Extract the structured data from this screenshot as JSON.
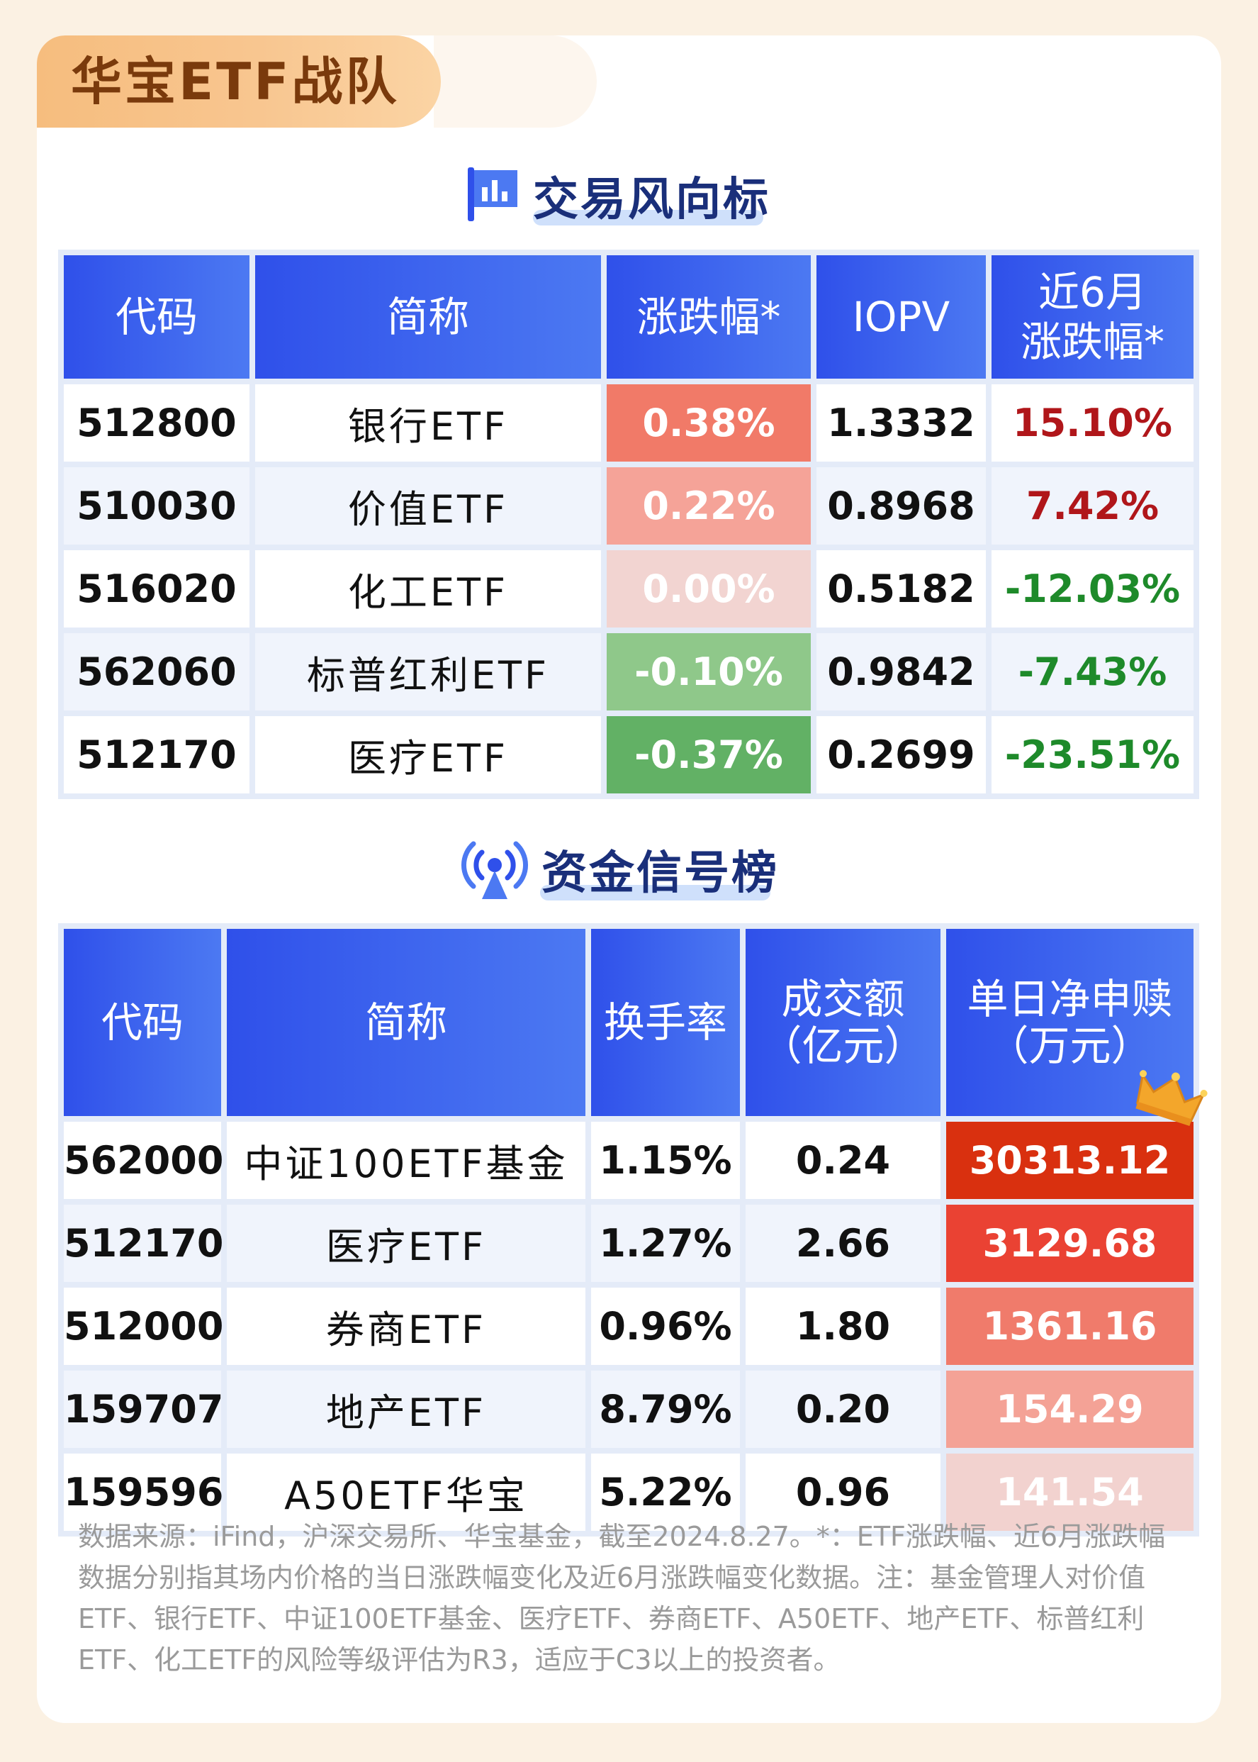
{
  "header": {
    "title": "华宝ETF战队"
  },
  "section1": {
    "title": "交易风向标",
    "icon": "flag-chart-icon",
    "columns": [
      "代码",
      "简称",
      "涨跌幅*",
      "IOPV",
      "近6月\n涨跌幅*"
    ],
    "rows": [
      {
        "code": "512800",
        "name": "银行ETF",
        "change": "0.38%",
        "iopv": "1.3332",
        "change6m": "15.10%",
        "change_color": "#f17a68",
        "change_text_color": "#ffffff"
      },
      {
        "code": "510030",
        "name": "价值ETF",
        "change": "0.22%",
        "iopv": "0.8968",
        "change6m": "7.42%",
        "change_color": "#f5a398",
        "change_text_color": "#ffffff"
      },
      {
        "code": "516020",
        "name": "化工ETF",
        "change": "0.00%",
        "iopv": "0.5182",
        "change6m": "-12.03%",
        "change_color": "#f2d4d1",
        "change_text_color": "#ffffff"
      },
      {
        "code": "562060",
        "name": "标普红利ETF",
        "change": "-0.10%",
        "iopv": "0.9842",
        "change6m": "-7.43%",
        "change_color": "#8fc88a",
        "change_text_color": "#ffffff"
      },
      {
        "code": "512170",
        "name": "医疗ETF",
        "change": "-0.37%",
        "iopv": "0.2699",
        "change6m": "-23.51%",
        "change_color": "#62b165",
        "change_text_color": "#ffffff"
      }
    ]
  },
  "section2": {
    "title": "资金信号榜",
    "icon": "signal-tower-icon",
    "columns": [
      "代码",
      "简称",
      "换手率",
      "成交额\n（亿元）",
      "单日净申赎\n（万元）"
    ],
    "rows": [
      {
        "code": "562000",
        "name": "中证100ETF基金",
        "turnover": "1.15%",
        "amount": "0.24",
        "net": "30313.12",
        "net_color": "#d9300f"
      },
      {
        "code": "512170",
        "name": "医疗ETF",
        "turnover": "1.27%",
        "amount": "2.66",
        "net": "3129.68",
        "net_color": "#ea4233"
      },
      {
        "code": "512000",
        "name": "券商ETF",
        "turnover": "0.96%",
        "amount": "1.80",
        "net": "1361.16",
        "net_color": "#f07b6b"
      },
      {
        "code": "159707",
        "name": "地产ETF",
        "turnover": "8.79%",
        "amount": "0.20",
        "net": "154.29",
        "net_color": "#f4a296"
      },
      {
        "code": "159596",
        "name": "A50ETF华宝",
        "turnover": "5.22%",
        "amount": "0.96",
        "net": "141.54",
        "net_color": "#f2d2cf"
      }
    ]
  },
  "footnote": "数据来源：iFind，沪深交易所、华宝基金，截至2024.8.27。*：ETF涨跌幅、近6月涨跌幅数据分别指其场内价格的当日涨跌幅变化及近6月涨跌幅变化数据。注：基金管理人对价值ETF、银行ETF、中证100ETF基金、医疗ETF、券商ETF、A50ETF、地产ETF、标普红利ETF、化工ETF的风险等级评估为R3，适应于C3以上的投资者。"
}
